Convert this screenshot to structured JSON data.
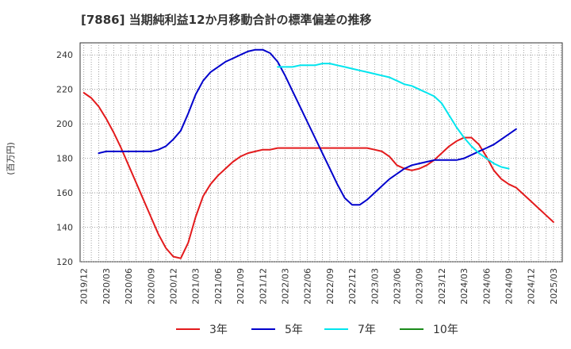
{
  "chart_data": {
    "type": "line",
    "title": "[7886]  当期純利益12か月移動合計の標準偏差の推移",
    "ylabel": "(百万円)",
    "ylim": [
      120,
      247
    ],
    "yticks": [
      120,
      140,
      160,
      180,
      200,
      220,
      240
    ],
    "x_tick_labels": [
      "2019/12",
      "2020/03",
      "2020/06",
      "2020/09",
      "2020/12",
      "2021/03",
      "2021/06",
      "2021/09",
      "2021/12",
      "2022/03",
      "2022/06",
      "2022/09",
      "2022/12",
      "2023/03",
      "2023/06",
      "2023/09",
      "2023/12",
      "2024/03",
      "2024/06",
      "2024/09",
      "2024/12",
      "2025/03"
    ],
    "grid": true,
    "legend_position": "bottom",
    "series": [
      {
        "name": "3年",
        "color": "#e31a1c",
        "values": [
          218,
          215,
          210,
          203,
          195,
          186,
          176,
          166,
          156,
          146,
          136,
          128,
          123,
          122,
          131,
          146,
          158,
          165,
          170,
          174,
          178,
          181,
          183,
          184,
          185,
          185,
          186,
          186,
          186,
          186,
          186,
          186,
          186,
          186,
          186,
          186,
          186,
          186,
          186,
          185,
          184,
          181,
          176,
          174,
          173,
          174,
          176,
          179,
          183,
          187,
          190,
          192,
          192,
          188,
          181,
          173,
          168,
          165,
          163,
          159,
          155,
          151,
          147,
          143
        ]
      },
      {
        "name": "5年",
        "color": "#0000cc",
        "values": [
          null,
          null,
          183,
          184,
          184,
          184,
          184,
          184,
          184,
          184,
          185,
          187,
          191,
          196,
          206,
          217,
          225,
          230,
          233,
          236,
          238,
          240,
          242,
          243,
          243,
          241,
          236,
          228,
          219,
          210,
          201,
          192,
          183,
          174,
          165,
          157,
          153,
          153,
          156,
          160,
          164,
          168,
          171,
          174,
          176,
          177,
          178,
          179,
          179,
          179,
          179,
          180,
          182,
          184,
          186,
          188,
          191,
          194,
          197
        ]
      },
      {
        "name": "7年",
        "color": "#00e5ee",
        "values": [
          null,
          null,
          null,
          null,
          null,
          null,
          null,
          null,
          null,
          null,
          null,
          null,
          null,
          null,
          null,
          null,
          null,
          null,
          null,
          null,
          null,
          null,
          null,
          null,
          null,
          null,
          233,
          233,
          233,
          234,
          234,
          234,
          235,
          235,
          234,
          233,
          232,
          231,
          230,
          229,
          228,
          227,
          225,
          223,
          222,
          220,
          218,
          216,
          212,
          205,
          198,
          192,
          187,
          183,
          180,
          177,
          175,
          174
        ]
      },
      {
        "name": "10年",
        "color": "#1a8a1a",
        "values": []
      }
    ]
  }
}
